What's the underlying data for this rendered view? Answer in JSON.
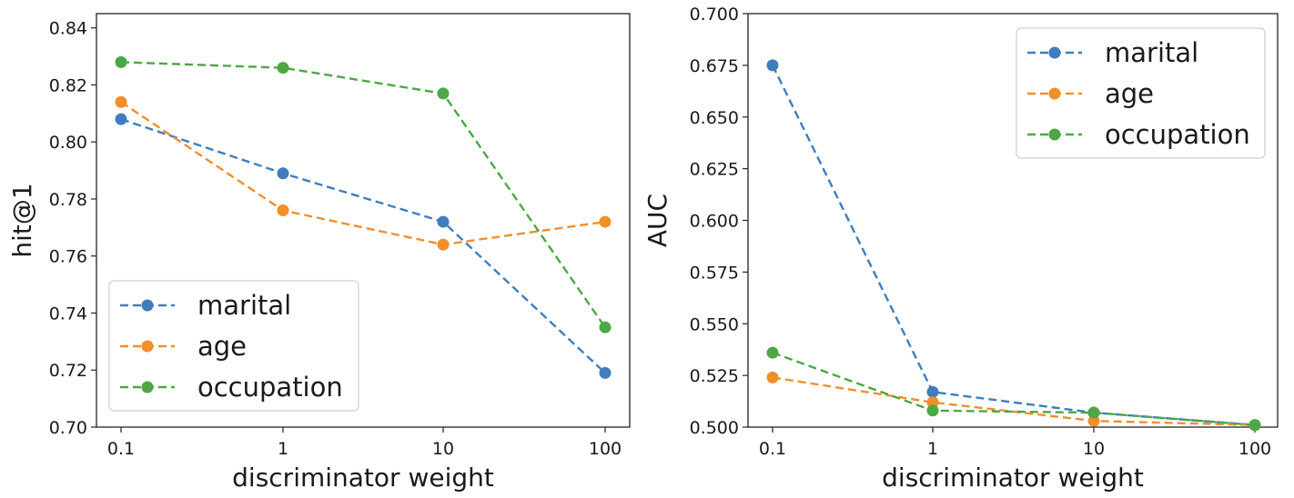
{
  "chart_data": [
    {
      "type": "line",
      "categories": [
        "0.1",
        "1",
        "10",
        "100"
      ],
      "xlabel": "discriminator weight",
      "ylabel": "hit@1",
      "ylim": [
        0.7,
        0.845
      ],
      "yticks": [
        "0.70",
        "0.72",
        "0.74",
        "0.76",
        "0.78",
        "0.80",
        "0.82",
        "0.84"
      ],
      "legend_position": "lower-left",
      "series": [
        {
          "name": "marital",
          "color": "#3e7ebd",
          "values": [
            0.808,
            0.789,
            0.772,
            0.719
          ]
        },
        {
          "name": "age",
          "color": "#f28e2b",
          "values": [
            0.814,
            0.776,
            0.764,
            0.772
          ]
        },
        {
          "name": "occupation",
          "color": "#4ca744",
          "values": [
            0.828,
            0.826,
            0.817,
            0.735
          ]
        }
      ]
    },
    {
      "type": "line",
      "categories": [
        "0.1",
        "1",
        "10",
        "100"
      ],
      "xlabel": "discriminator weight",
      "ylabel": "AUC",
      "ylim": [
        0.5,
        0.7
      ],
      "yticks": [
        "0.500",
        "0.525",
        "0.550",
        "0.575",
        "0.600",
        "0.625",
        "0.650",
        "0.675",
        "0.700"
      ],
      "legend_position": "upper-right",
      "series": [
        {
          "name": "marital",
          "color": "#3e7ebd",
          "values": [
            0.675,
            0.517,
            0.507,
            0.501
          ]
        },
        {
          "name": "age",
          "color": "#f28e2b",
          "values": [
            0.524,
            0.512,
            0.503,
            0.501
          ]
        },
        {
          "name": "occupation",
          "color": "#4ca744",
          "values": [
            0.536,
            0.508,
            0.507,
            0.501
          ]
        }
      ]
    }
  ]
}
